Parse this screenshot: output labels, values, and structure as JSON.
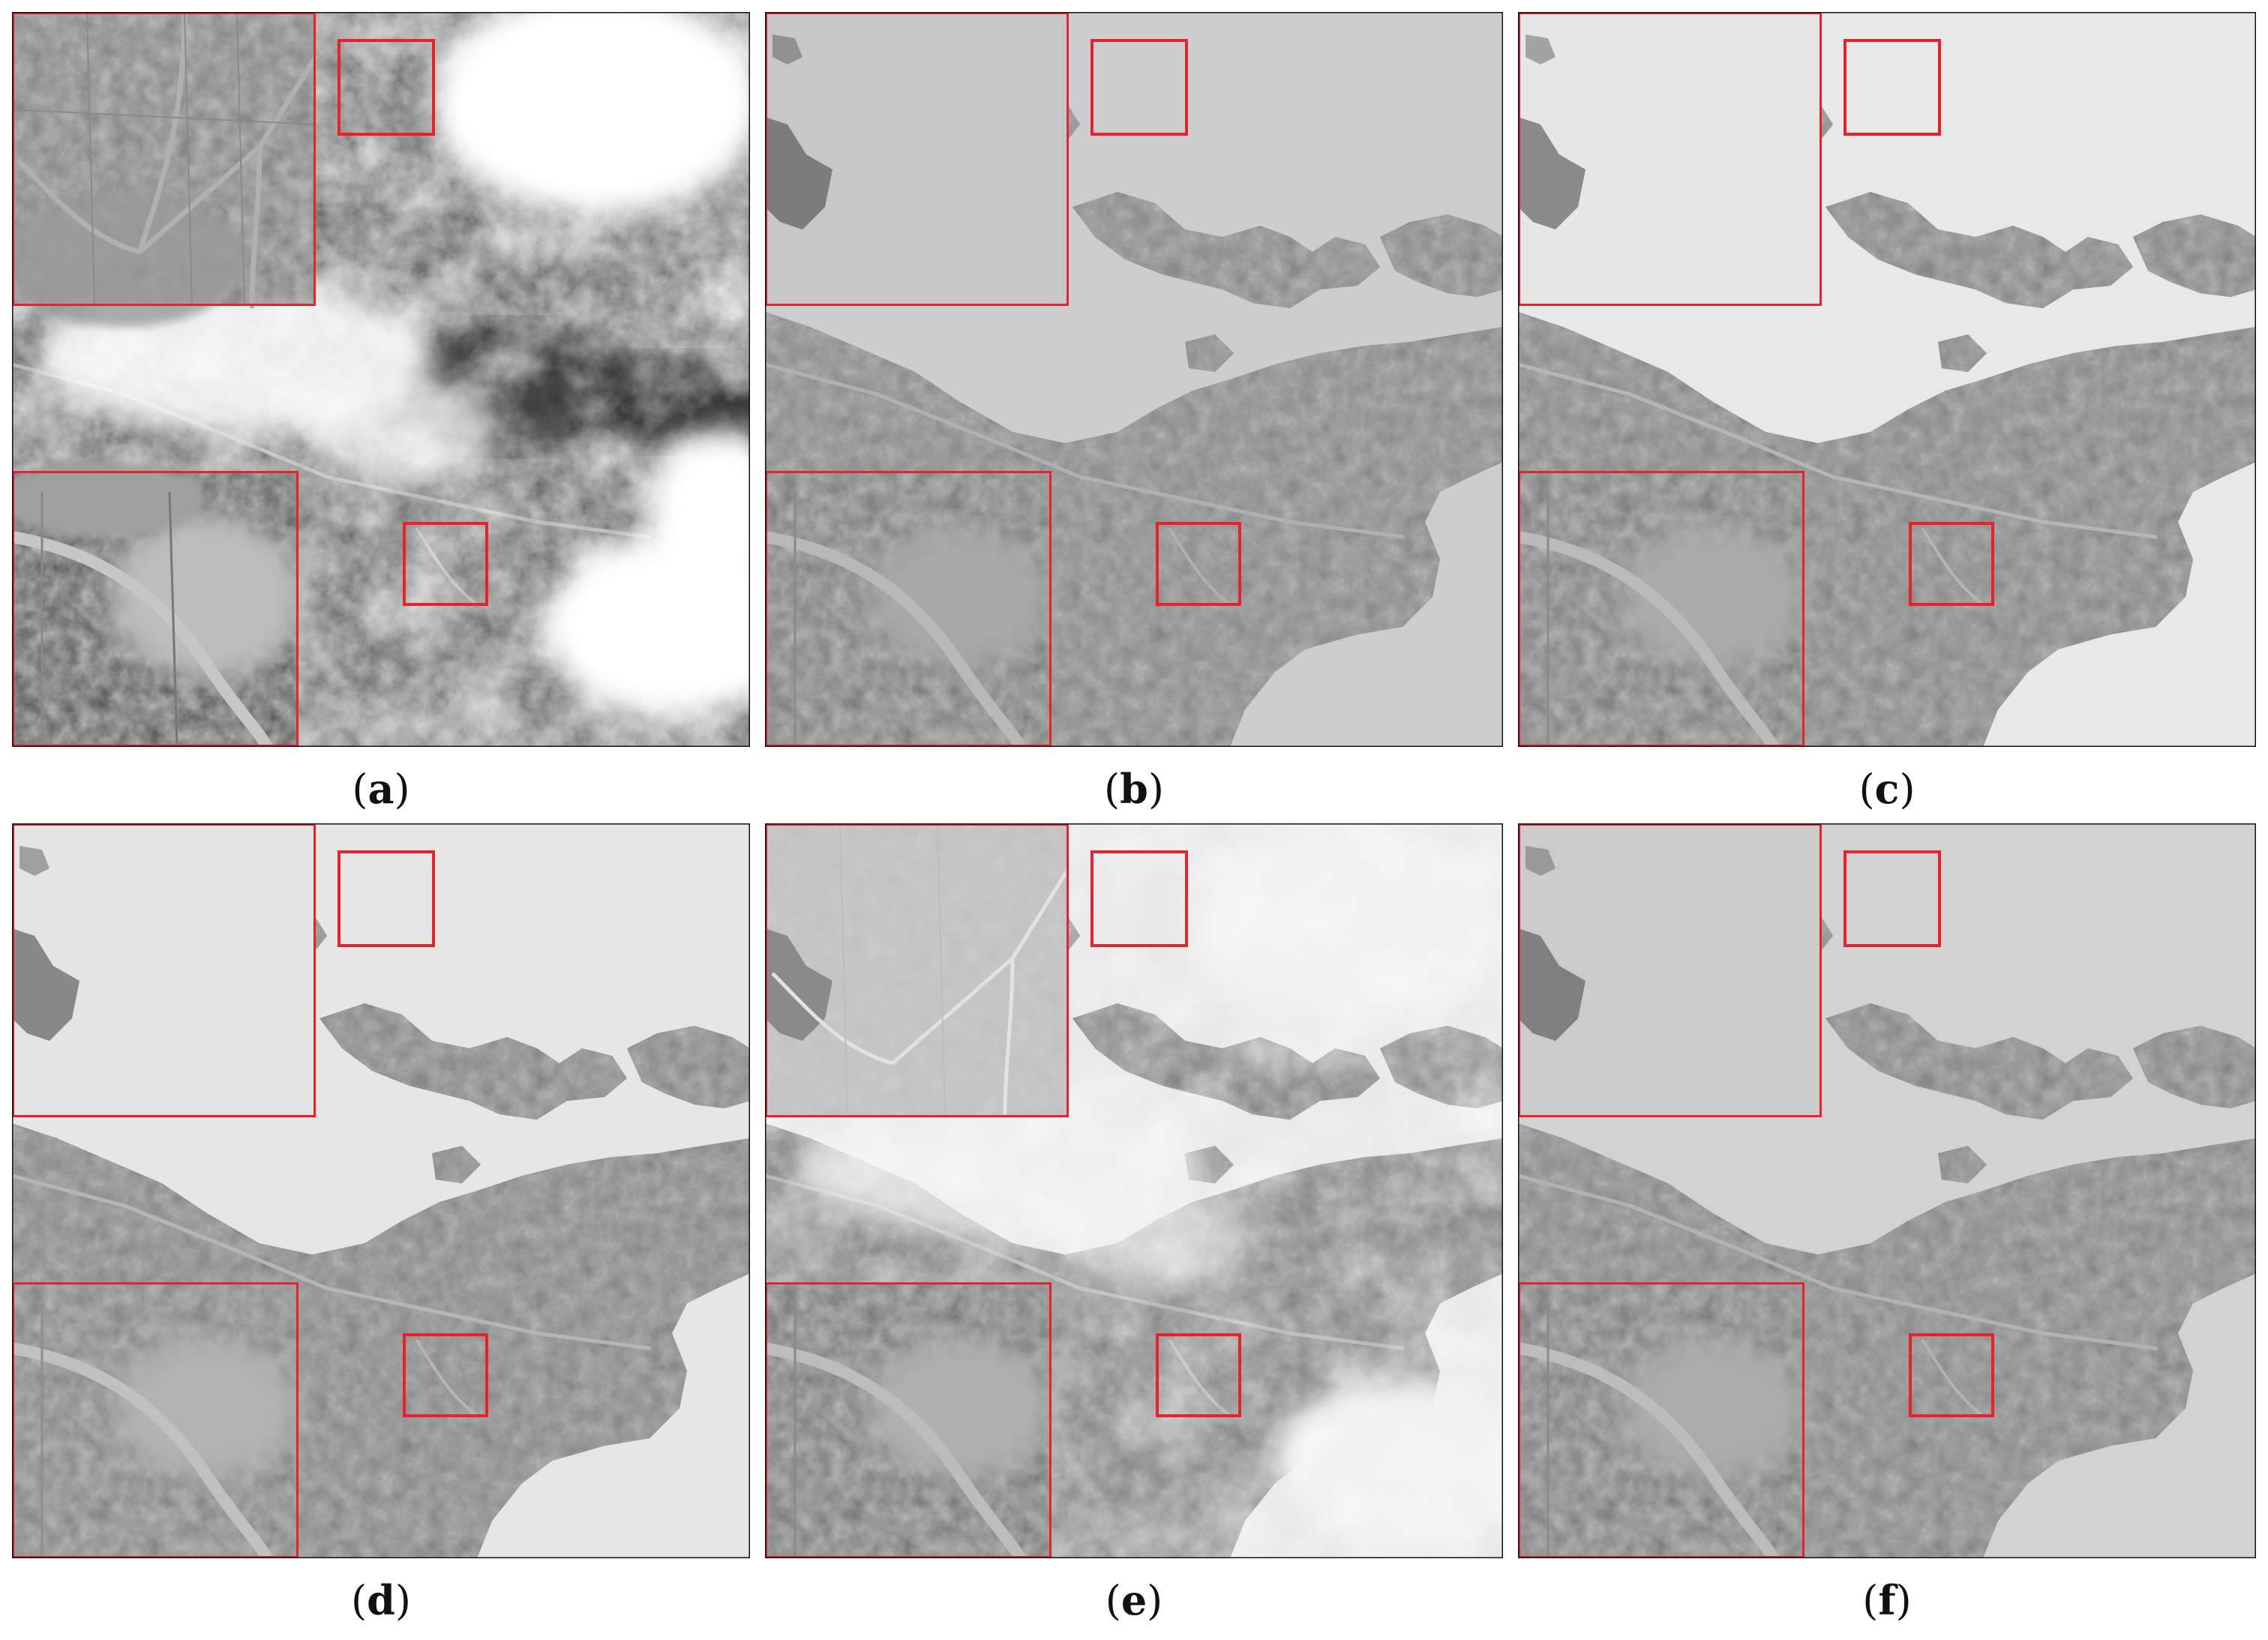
{
  "figure": {
    "panels": [
      {
        "id": "a",
        "label": "a",
        "style": "cloudy-input"
      },
      {
        "id": "b",
        "label": "b",
        "style": "flat-gray"
      },
      {
        "id": "c",
        "label": "c",
        "style": "flat-light"
      },
      {
        "id": "d",
        "label": "d",
        "style": "flat-light"
      },
      {
        "id": "e",
        "label": "e",
        "style": "hazy"
      },
      {
        "id": "f",
        "label": "f",
        "style": "flat-gray"
      }
    ],
    "colors": {
      "highlight_box": "#e8212b",
      "inset_border": "#e8212b",
      "panel_border": "#111111",
      "caption_text": "#111111"
    }
  }
}
